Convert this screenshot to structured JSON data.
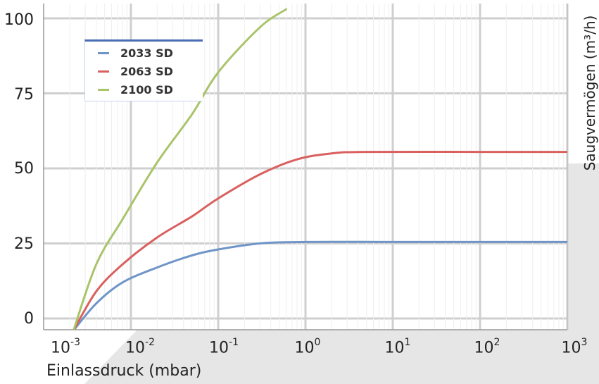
{
  "chart_data": {
    "type": "line",
    "x_scale": "log",
    "x_ticks": [
      {
        "base": "10",
        "exp": "-3"
      },
      {
        "base": "10",
        "exp": "-2"
      },
      {
        "base": "10",
        "exp": "-1"
      },
      {
        "base": "10",
        "exp": "0"
      },
      {
        "base": "10",
        "exp": "1"
      },
      {
        "base": "10",
        "exp": "2"
      },
      {
        "base": "10",
        "exp": "3"
      }
    ],
    "y_ticks": [
      "0",
      "25",
      "50",
      "75",
      "100"
    ],
    "xlim": [
      0.001,
      1000
    ],
    "ylim": [
      0,
      100
    ],
    "xlabel": "Einlassdruck (mbar)",
    "ylabel": "Saugvermögen (m³/h)",
    "grid": true,
    "legend_position": "top-left",
    "series": [
      {
        "name": "2033 SD",
        "color": "#6f95c8",
        "points": [
          [
            0.0022,
            -4
          ],
          [
            0.004,
            5
          ],
          [
            0.008,
            12
          ],
          [
            0.02,
            17
          ],
          [
            0.05,
            21
          ],
          [
            0.1,
            23
          ],
          [
            0.3,
            25
          ],
          [
            1,
            25.5
          ],
          [
            10,
            25.5
          ],
          [
            100,
            25.5
          ],
          [
            1000,
            25.5
          ]
        ]
      },
      {
        "name": "2063 SD",
        "color": "#d9605f",
        "points": [
          [
            0.0022,
            -4
          ],
          [
            0.004,
            9
          ],
          [
            0.008,
            18
          ],
          [
            0.02,
            27
          ],
          [
            0.05,
            34
          ],
          [
            0.1,
            40
          ],
          [
            0.3,
            48
          ],
          [
            0.8,
            53
          ],
          [
            2,
            55
          ],
          [
            5,
            55.5
          ],
          [
            100,
            55.5
          ],
          [
            1000,
            55.5
          ]
        ]
      },
      {
        "name": "2100 SD",
        "color": "#a9c46a",
        "points": [
          [
            0.0022,
            -4
          ],
          [
            0.004,
            18
          ],
          [
            0.008,
            33
          ],
          [
            0.02,
            52
          ],
          [
            0.05,
            68
          ],
          [
            0.1,
            82
          ],
          [
            0.3,
            97
          ],
          [
            0.6,
            103
          ]
        ]
      }
    ]
  }
}
